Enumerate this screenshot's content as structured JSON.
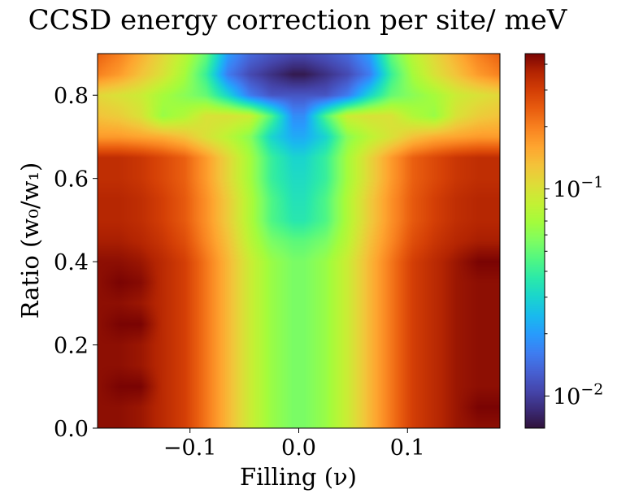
{
  "chart_data": {
    "type": "heatmap",
    "title": "CCSD energy correction per site/ meV",
    "xlabel": "Filling (ν)",
    "ylabel": "Ratio (w₀/w₁)",
    "xlim": [
      -0.185,
      0.185
    ],
    "ylim": [
      0.0,
      0.9
    ],
    "x_ticks": [
      -0.1,
      0.0,
      0.1
    ],
    "x_tick_labels": [
      "−0.1",
      "0.0",
      "0.1"
    ],
    "y_ticks": [
      0.0,
      0.2,
      0.4,
      0.6,
      0.8
    ],
    "y_tick_labels": [
      "0.0",
      "0.2",
      "0.4",
      "0.6",
      "0.8"
    ],
    "colorbar": {
      "scale": "log",
      "colormap": "turbo",
      "range": [
        0.007,
        0.45
      ],
      "major_ticks": [
        0.01,
        0.1
      ],
      "major_tick_base": "10",
      "major_tick_exponents": [
        "−2",
        "−1"
      ],
      "minor_ticks": [
        0.02,
        0.03,
        0.04,
        0.05,
        0.06,
        0.07,
        0.08,
        0.09,
        0.2,
        0.3,
        0.4
      ]
    },
    "x_grid": [
      -0.185,
      -0.165,
      -0.145,
      -0.125,
      -0.105,
      -0.085,
      -0.065,
      -0.045,
      -0.025,
      -0.005,
      0.005,
      0.025,
      0.045,
      0.065,
      0.085,
      0.105,
      0.125,
      0.145,
      0.165,
      0.185
    ],
    "y_grid": [
      0.0,
      0.05,
      0.1,
      0.15,
      0.2,
      0.25,
      0.3,
      0.35,
      0.4,
      0.45,
      0.5,
      0.55,
      0.6,
      0.65,
      0.7,
      0.75,
      0.8,
      0.85,
      0.9
    ],
    "z": [
      [
        0.42,
        0.42,
        0.4,
        0.35,
        0.3,
        0.21,
        0.14,
        0.09,
        0.065,
        0.055,
        0.055,
        0.065,
        0.09,
        0.14,
        0.21,
        0.3,
        0.35,
        0.4,
        0.42,
        0.42
      ],
      [
        0.42,
        0.42,
        0.4,
        0.35,
        0.3,
        0.21,
        0.14,
        0.09,
        0.065,
        0.055,
        0.055,
        0.065,
        0.09,
        0.14,
        0.21,
        0.3,
        0.35,
        0.4,
        0.45,
        0.45
      ],
      [
        0.42,
        0.45,
        0.45,
        0.35,
        0.3,
        0.21,
        0.14,
        0.09,
        0.065,
        0.055,
        0.055,
        0.065,
        0.09,
        0.14,
        0.21,
        0.3,
        0.35,
        0.4,
        0.42,
        0.42
      ],
      [
        0.42,
        0.42,
        0.4,
        0.35,
        0.3,
        0.21,
        0.14,
        0.09,
        0.065,
        0.055,
        0.055,
        0.065,
        0.09,
        0.14,
        0.21,
        0.3,
        0.35,
        0.4,
        0.42,
        0.42
      ],
      [
        0.42,
        0.42,
        0.4,
        0.35,
        0.3,
        0.21,
        0.14,
        0.09,
        0.065,
        0.055,
        0.055,
        0.065,
        0.09,
        0.14,
        0.21,
        0.3,
        0.35,
        0.4,
        0.42,
        0.42
      ],
      [
        0.42,
        0.45,
        0.45,
        0.35,
        0.3,
        0.21,
        0.14,
        0.09,
        0.065,
        0.055,
        0.055,
        0.065,
        0.09,
        0.14,
        0.21,
        0.3,
        0.35,
        0.4,
        0.42,
        0.42
      ],
      [
        0.42,
        0.42,
        0.4,
        0.35,
        0.3,
        0.21,
        0.14,
        0.09,
        0.065,
        0.055,
        0.055,
        0.065,
        0.09,
        0.14,
        0.21,
        0.3,
        0.35,
        0.4,
        0.42,
        0.42
      ],
      [
        0.42,
        0.45,
        0.43,
        0.35,
        0.3,
        0.21,
        0.14,
        0.09,
        0.065,
        0.055,
        0.055,
        0.065,
        0.09,
        0.14,
        0.21,
        0.3,
        0.35,
        0.4,
        0.42,
        0.42
      ],
      [
        0.42,
        0.42,
        0.4,
        0.35,
        0.3,
        0.21,
        0.14,
        0.09,
        0.065,
        0.055,
        0.055,
        0.065,
        0.09,
        0.14,
        0.21,
        0.3,
        0.35,
        0.4,
        0.45,
        0.45
      ],
      [
        0.38,
        0.38,
        0.36,
        0.32,
        0.27,
        0.19,
        0.13,
        0.08,
        0.055,
        0.048,
        0.048,
        0.055,
        0.08,
        0.13,
        0.19,
        0.27,
        0.32,
        0.36,
        0.38,
        0.38
      ],
      [
        0.36,
        0.36,
        0.34,
        0.3,
        0.25,
        0.18,
        0.12,
        0.075,
        0.045,
        0.036,
        0.036,
        0.045,
        0.075,
        0.12,
        0.18,
        0.25,
        0.3,
        0.34,
        0.36,
        0.36
      ],
      [
        0.36,
        0.36,
        0.34,
        0.3,
        0.25,
        0.18,
        0.12,
        0.075,
        0.045,
        0.034,
        0.034,
        0.045,
        0.075,
        0.12,
        0.18,
        0.25,
        0.3,
        0.34,
        0.36,
        0.36
      ],
      [
        0.34,
        0.34,
        0.32,
        0.28,
        0.24,
        0.17,
        0.11,
        0.07,
        0.04,
        0.032,
        0.032,
        0.04,
        0.07,
        0.11,
        0.17,
        0.24,
        0.28,
        0.32,
        0.34,
        0.34
      ],
      [
        0.34,
        0.34,
        0.32,
        0.28,
        0.24,
        0.17,
        0.11,
        0.07,
        0.04,
        0.03,
        0.03,
        0.04,
        0.07,
        0.11,
        0.17,
        0.24,
        0.28,
        0.32,
        0.34,
        0.34
      ],
      [
        0.17,
        0.17,
        0.16,
        0.15,
        0.13,
        0.1,
        0.08,
        0.06,
        0.03,
        0.022,
        0.022,
        0.03,
        0.06,
        0.08,
        0.1,
        0.13,
        0.15,
        0.16,
        0.17,
        0.17
      ],
      [
        0.13,
        0.12,
        0.1,
        0.065,
        0.075,
        0.1,
        0.1,
        0.09,
        0.045,
        0.018,
        0.018,
        0.045,
        0.09,
        0.1,
        0.1,
        0.075,
        0.065,
        0.1,
        0.12,
        0.13
      ],
      [
        0.11,
        0.1,
        0.09,
        0.07,
        0.06,
        0.05,
        0.03,
        0.016,
        0.012,
        0.012,
        0.012,
        0.012,
        0.016,
        0.03,
        0.05,
        0.06,
        0.07,
        0.09,
        0.1,
        0.11
      ],
      [
        0.2,
        0.17,
        0.13,
        0.1,
        0.07,
        0.04,
        0.016,
        0.011,
        0.009,
        0.0075,
        0.0075,
        0.009,
        0.011,
        0.016,
        0.04,
        0.07,
        0.1,
        0.13,
        0.17,
        0.2
      ],
      [
        0.24,
        0.2,
        0.15,
        0.11,
        0.08,
        0.05,
        0.02,
        0.014,
        0.012,
        0.011,
        0.011,
        0.012,
        0.014,
        0.02,
        0.05,
        0.08,
        0.11,
        0.15,
        0.2,
        0.24
      ]
    ]
  }
}
